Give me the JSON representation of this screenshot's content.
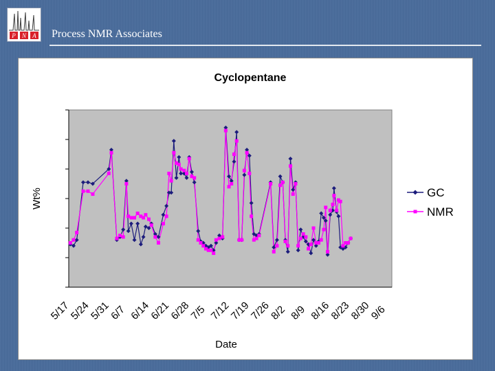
{
  "slide": {
    "brand": "Process NMR Associates",
    "logo_text": [
      "P",
      "N",
      "A"
    ]
  },
  "chart_data": {
    "type": "line",
    "title": "Cyclopentane",
    "xlabel": "Date",
    "ylabel": "Wt%",
    "ylim": [
      0,
      60
    ],
    "xlim": [
      0,
      100
    ],
    "grid": false,
    "legend": "right",
    "categories": [
      "5/17",
      "5/24",
      "5/31",
      "6/7",
      "6/14",
      "6/21",
      "6/28",
      "7/5",
      "7/12",
      "7/19",
      "7/26",
      "8/2",
      "8/9",
      "8/16",
      "8/23",
      "8/30",
      "9/6"
    ],
    "category_x": [
      0,
      6.25,
      12.5,
      18.75,
      25,
      31.25,
      37.5,
      43.75,
      50,
      56.25,
      62.5,
      68.75,
      75,
      81.25,
      87.5,
      93.75,
      100
    ],
    "series": [
      {
        "name": "GC",
        "color": "#1c1c7c",
        "marker": "diamond",
        "points": [
          [
            0.5,
            14.5
          ],
          [
            1.5,
            14.0
          ],
          [
            2.5,
            16.0
          ],
          [
            4.5,
            35.5
          ],
          [
            6.0,
            35.5
          ],
          [
            7.5,
            35.0
          ],
          [
            12.5,
            40.0
          ],
          [
            13.3,
            46.5
          ],
          [
            15.0,
            16.0
          ],
          [
            16.0,
            17.0
          ],
          [
            17.0,
            19.5
          ],
          [
            18.0,
            36.0
          ],
          [
            18.6,
            19.0
          ],
          [
            19.5,
            21.5
          ],
          [
            20.5,
            16.0
          ],
          [
            21.5,
            21.5
          ],
          [
            22.5,
            14.5
          ],
          [
            23.3,
            17.0
          ],
          [
            24.0,
            20.5
          ],
          [
            25.0,
            20.0
          ],
          [
            25.8,
            21.5
          ],
          [
            27.0,
            18.0
          ],
          [
            28.0,
            17.0
          ],
          [
            29.5,
            24.5
          ],
          [
            30.5,
            27.5
          ],
          [
            31.3,
            32.0
          ],
          [
            32.0,
            32.0
          ],
          [
            32.8,
            49.5
          ],
          [
            33.6,
            37.0
          ],
          [
            34.4,
            44.0
          ],
          [
            35.0,
            38.5
          ],
          [
            36.0,
            38.5
          ],
          [
            36.8,
            37.0
          ],
          [
            37.6,
            44.0
          ],
          [
            38.4,
            39.0
          ],
          [
            39.2,
            35.5
          ],
          [
            40.4,
            19.0
          ],
          [
            41.2,
            15.5
          ],
          [
            42.0,
            15.0
          ],
          [
            42.8,
            14.0
          ],
          [
            43.6,
            13.5
          ],
          [
            44.4,
            14.0
          ],
          [
            45.2,
            12.5
          ],
          [
            46.0,
            15.0
          ],
          [
            47.0,
            17.5
          ],
          [
            48.0,
            16.5
          ],
          [
            49.0,
            54.0
          ],
          [
            50.0,
            37.5
          ],
          [
            50.8,
            36.0
          ],
          [
            51.6,
            42.5
          ],
          [
            52.4,
            52.5
          ],
          [
            53.2,
            16.0
          ],
          [
            54.0,
            16.0
          ],
          [
            54.8,
            38.0
          ],
          [
            55.6,
            46.5
          ],
          [
            56.4,
            44.5
          ],
          [
            57.0,
            28.5
          ],
          [
            57.8,
            18.0
          ],
          [
            58.6,
            17.5
          ],
          [
            59.4,
            18.0
          ],
          [
            63.0,
            35.5
          ],
          [
            64.0,
            13.5
          ],
          [
            65.0,
            16.0
          ],
          [
            66.0,
            37.5
          ],
          [
            66.8,
            35.5
          ],
          [
            67.6,
            16.0
          ],
          [
            68.4,
            12.0
          ],
          [
            69.2,
            43.5
          ],
          [
            70.0,
            33.0
          ],
          [
            70.8,
            35.5
          ],
          [
            71.6,
            12.5
          ],
          [
            72.4,
            19.5
          ],
          [
            73.2,
            17.0
          ],
          [
            74.0,
            15.5
          ],
          [
            74.8,
            14.5
          ],
          [
            75.6,
            11.5
          ],
          [
            76.4,
            16.0
          ],
          [
            77.2,
            14.0
          ],
          [
            78.0,
            15.5
          ],
          [
            78.8,
            25.0
          ],
          [
            79.6,
            23.5
          ],
          [
            80.2,
            22.5
          ],
          [
            80.8,
            11.0
          ],
          [
            81.6,
            24.5
          ],
          [
            82.4,
            26.0
          ],
          [
            82.8,
            33.5
          ],
          [
            83.6,
            25.5
          ],
          [
            84.2,
            24.0
          ],
          [
            84.8,
            13.5
          ],
          [
            85.6,
            13.0
          ],
          [
            86.4,
            13.5
          ],
          [
            87.2,
            15.0
          ],
          [
            88.0,
            16.5
          ]
        ]
      },
      {
        "name": "NMR",
        "color": "#ff00ff",
        "marker": "square",
        "points": [
          [
            0.5,
            15.0
          ],
          [
            1.5,
            16.0
          ],
          [
            2.5,
            18.5
          ],
          [
            4.5,
            32.5
          ],
          [
            6.0,
            32.5
          ],
          [
            7.5,
            31.5
          ],
          [
            12.5,
            38.5
          ],
          [
            13.3,
            45.5
          ],
          [
            15.0,
            16.5
          ],
          [
            16.0,
            17.5
          ],
          [
            17.0,
            17.0
          ],
          [
            18.0,
            35.0
          ],
          [
            18.6,
            24.0
          ],
          [
            19.5,
            23.5
          ],
          [
            20.5,
            23.5
          ],
          [
            21.5,
            25.0
          ],
          [
            22.5,
            24.0
          ],
          [
            23.3,
            23.5
          ],
          [
            24.0,
            24.5
          ],
          [
            25.0,
            23.0
          ],
          [
            25.8,
            21.0
          ],
          [
            27.0,
            17.0
          ],
          [
            28.0,
            15.0
          ],
          [
            29.5,
            21.5
          ],
          [
            30.5,
            24.0
          ],
          [
            31.3,
            38.5
          ],
          [
            32.0,
            36.0
          ],
          [
            32.8,
            45.5
          ],
          [
            33.6,
            42.0
          ],
          [
            34.4,
            41.5
          ],
          [
            35.0,
            40.0
          ],
          [
            36.0,
            39.5
          ],
          [
            36.8,
            38.5
          ],
          [
            37.6,
            43.5
          ],
          [
            38.4,
            37.5
          ],
          [
            39.2,
            37.0
          ],
          [
            40.4,
            16.0
          ],
          [
            41.2,
            15.0
          ],
          [
            42.0,
            14.0
          ],
          [
            42.8,
            13.0
          ],
          [
            43.6,
            12.5
          ],
          [
            44.4,
            12.5
          ],
          [
            45.2,
            11.5
          ],
          [
            46.0,
            16.0
          ],
          [
            47.0,
            16.5
          ],
          [
            48.0,
            17.0
          ],
          [
            49.0,
            53.0
          ],
          [
            50.0,
            34.0
          ],
          [
            50.8,
            35.0
          ],
          [
            51.6,
            45.0
          ],
          [
            52.4,
            49.5
          ],
          [
            53.2,
            16.0
          ],
          [
            54.0,
            16.0
          ],
          [
            54.8,
            39.5
          ],
          [
            55.6,
            45.5
          ],
          [
            56.4,
            38.5
          ],
          [
            57.0,
            24.0
          ],
          [
            57.8,
            16.0
          ],
          [
            58.6,
            16.5
          ],
          [
            59.4,
            17.5
          ],
          [
            63.0,
            35.0
          ],
          [
            64.0,
            12.0
          ],
          [
            65.0,
            14.0
          ],
          [
            66.0,
            34.5
          ],
          [
            66.8,
            35.5
          ],
          [
            67.6,
            15.5
          ],
          [
            68.4,
            14.0
          ],
          [
            69.2,
            41.0
          ],
          [
            70.0,
            31.5
          ],
          [
            70.8,
            35.0
          ],
          [
            71.6,
            14.0
          ],
          [
            72.4,
            16.5
          ],
          [
            73.2,
            18.0
          ],
          [
            74.0,
            17.0
          ],
          [
            74.8,
            13.0
          ],
          [
            75.6,
            14.5
          ],
          [
            76.4,
            20.0
          ],
          [
            77.2,
            15.0
          ],
          [
            78.0,
            15.0
          ],
          [
            78.8,
            16.0
          ],
          [
            79.6,
            19.5
          ],
          [
            80.2,
            27.0
          ],
          [
            80.8,
            12.0
          ],
          [
            81.6,
            26.0
          ],
          [
            82.4,
            28.0
          ],
          [
            82.8,
            31.0
          ],
          [
            83.6,
            26.0
          ],
          [
            84.2,
            29.5
          ],
          [
            84.8,
            29.0
          ],
          [
            85.6,
            14.0
          ],
          [
            86.4,
            15.0
          ],
          [
            87.2,
            15.0
          ],
          [
            88.0,
            16.5
          ]
        ]
      }
    ]
  }
}
